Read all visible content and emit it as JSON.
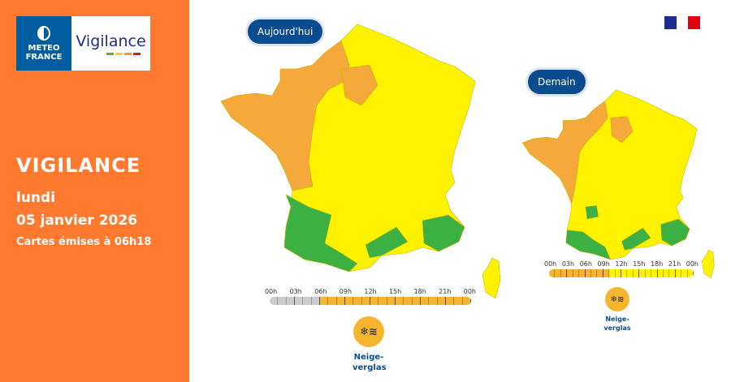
{
  "logo": {
    "brand": "METEO FRANCE",
    "product": "Vigilance",
    "bar_colors": [
      "#5DB13B",
      "#F2D51B",
      "#F29A2E",
      "#D42020"
    ]
  },
  "sidebar": {
    "title": "VIGILANCE",
    "day": "lundi",
    "date": "05 janvier 2026",
    "issued": "Cartes émises à 06h18",
    "background": "#FF7A2F"
  },
  "today": {
    "label": "Aujourd'hui",
    "hours": [
      "00h",
      "03h",
      "06h",
      "09h",
      "12h",
      "15h",
      "18h",
      "21h",
      "00h"
    ],
    "timeline": [
      {
        "from": 0,
        "to": 6,
        "level": "green",
        "color": "#CCCCCC"
      },
      {
        "from": 6,
        "to": 24,
        "level": "orange",
        "color": "#F6B52E"
      }
    ],
    "hazard": {
      "icon": "snow-ice-icon",
      "label": "Neige-verglas"
    }
  },
  "tomorrow": {
    "label": "Demain",
    "hours": [
      "00h",
      "03h",
      "06h",
      "09h",
      "12h",
      "15h",
      "18h",
      "21h",
      "00h"
    ],
    "timeline": [
      {
        "from": 0,
        "to": 10,
        "level": "orange",
        "color": "#F6B52E"
      },
      {
        "from": 10,
        "to": 24,
        "level": "yellow",
        "color": "#FFF200"
      }
    ],
    "hazard": {
      "icon": "snow-ice-icon",
      "label": "Neige-verglas"
    }
  },
  "colors": {
    "yellow": "#FFF200",
    "orange": "#F6A93B",
    "green": "#3CB043",
    "pill": "#0A4C8F"
  }
}
